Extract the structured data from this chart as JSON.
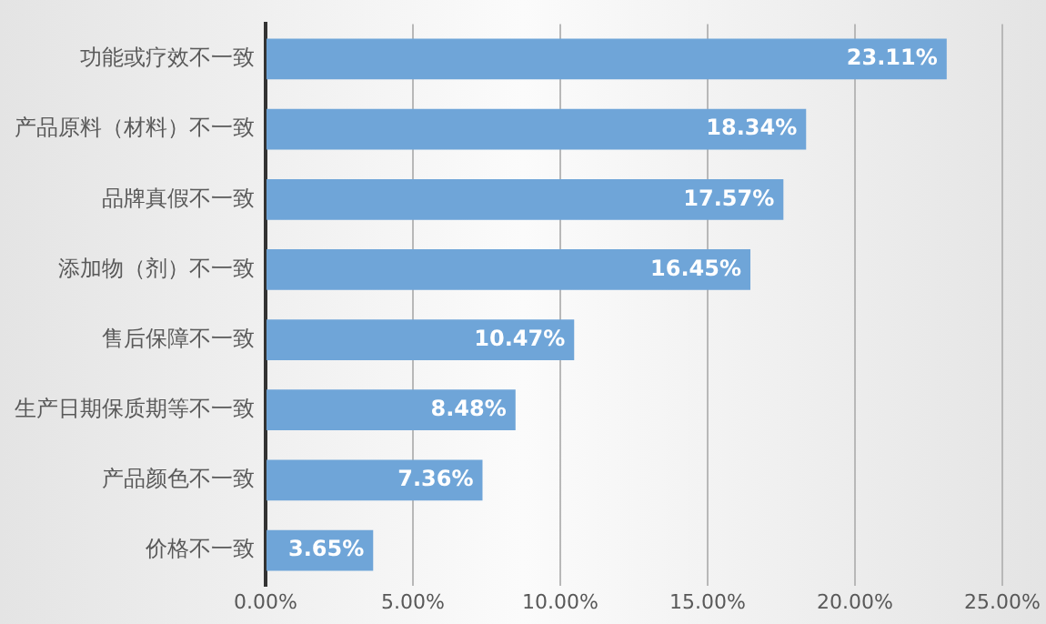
{
  "chart_data": {
    "type": "bar",
    "orientation": "horizontal",
    "categories": [
      "功能或疗效不一致",
      "产品原料（材料）不一致",
      "品牌真假不一致",
      "添加物（剂）不一致",
      "售后保障不一致",
      "生产日期保质期等不一致",
      "产品颜色不一致",
      "价格不一致"
    ],
    "values": [
      23.11,
      18.34,
      17.57,
      16.45,
      10.47,
      8.48,
      7.36,
      3.65
    ],
    "value_labels": [
      "23.11%",
      "18.34%",
      "17.57%",
      "16.45%",
      "10.47%",
      "8.48%",
      "7.36%",
      "3.65%"
    ],
    "color": "#6fa5d8",
    "xlim": [
      0,
      25
    ],
    "xticks": [
      {
        "value": 0,
        "label": "0.00%"
      },
      {
        "value": 5,
        "label": "5.00%"
      },
      {
        "value": 10,
        "label": "10.00%"
      },
      {
        "value": 15,
        "label": "15.00%"
      },
      {
        "value": 20,
        "label": "20.00%"
      },
      {
        "value": 25,
        "label": "25.00%"
      }
    ],
    "grid": "x",
    "legend": false
  }
}
